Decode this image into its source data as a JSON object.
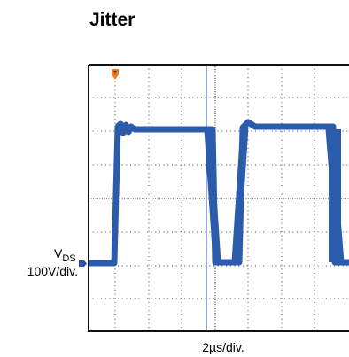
{
  "title": "Jitter",
  "y_label": {
    "main": "V",
    "sub": "DS",
    "scale": "100V/div."
  },
  "x_label": "2µs/div."
}
